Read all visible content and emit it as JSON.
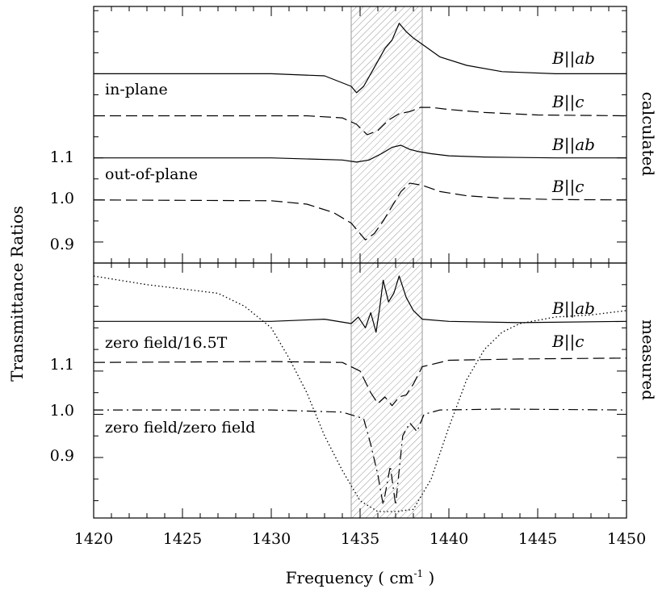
{
  "chart_data": [
    {
      "panel": "top",
      "type": "line",
      "side_label": "calculated",
      "xlim": [
        1420,
        1450
      ],
      "ylim": [
        0.85,
        1.46
      ],
      "yticks": [
        0.9,
        1.0,
        1.1
      ],
      "yticklabels": [
        "0.9",
        "1.0",
        "1.1"
      ],
      "annotations": [
        "in-plane",
        "out-of-plane"
      ],
      "series": [
        {
          "name": "B||ab",
          "group": "in-plane",
          "style": "solid",
          "x": [
            1420,
            1430,
            1433,
            1434.5,
            1434.8,
            1435.2,
            1435.6,
            1436,
            1436.4,
            1436.8,
            1437.2,
            1437.6,
            1438,
            1438.5,
            1439.5,
            1441,
            1443,
            1446,
            1450
          ],
          "y": [
            1.3,
            1.3,
            1.295,
            1.27,
            1.255,
            1.27,
            1.3,
            1.33,
            1.36,
            1.38,
            1.42,
            1.4,
            1.385,
            1.37,
            1.34,
            1.32,
            1.305,
            1.3,
            1.3
          ]
        },
        {
          "name": "B||c",
          "group": "in-plane",
          "style": "dashed",
          "x": [
            1420,
            1432,
            1434,
            1434.8,
            1435.4,
            1436,
            1436.6,
            1437.2,
            1437.8,
            1438.4,
            1439,
            1440,
            1442,
            1445,
            1450
          ],
          "y": [
            1.2,
            1.2,
            1.195,
            1.18,
            1.155,
            1.165,
            1.19,
            1.205,
            1.21,
            1.22,
            1.22,
            1.215,
            1.208,
            1.202,
            1.2
          ]
        },
        {
          "name": "B||ab",
          "group": "out-of-plane",
          "style": "solid",
          "x": [
            1420,
            1430,
            1434,
            1434.8,
            1435.5,
            1436.2,
            1436.8,
            1437.3,
            1437.8,
            1438.3,
            1439,
            1440,
            1442,
            1446,
            1450
          ],
          "y": [
            1.1,
            1.1,
            1.095,
            1.09,
            1.095,
            1.11,
            1.125,
            1.13,
            1.12,
            1.115,
            1.11,
            1.105,
            1.102,
            1.1,
            1.1
          ]
        },
        {
          "name": "B||c",
          "group": "out-of-plane",
          "style": "dashed",
          "x": [
            1420,
            1430,
            1432,
            1433.5,
            1434.5,
            1435.0,
            1435.3,
            1435.8,
            1436.3,
            1436.8,
            1437.3,
            1437.8,
            1438.5,
            1439.5,
            1441,
            1443,
            1446,
            1450
          ],
          "y": [
            1.0,
            0.998,
            0.99,
            0.97,
            0.945,
            0.92,
            0.905,
            0.92,
            0.95,
            0.985,
            1.02,
            1.04,
            1.035,
            1.02,
            1.01,
            1.004,
            1.001,
            1.0
          ]
        }
      ]
    },
    {
      "panel": "bottom",
      "type": "line",
      "side_label": "measured",
      "xlim": [
        1420,
        1450
      ],
      "ylim": [
        0.76,
        1.35
      ],
      "yticks": [
        0.9,
        1.0,
        1.1
      ],
      "yticklabels": [
        "0.9",
        "1.0",
        "1.1"
      ],
      "annotations": [
        "zero field/16.5T",
        "zero field/zero field"
      ],
      "series": [
        {
          "name": "B||ab",
          "group": "zero field/16.5T",
          "style": "solid",
          "x": [
            1420,
            1430,
            1433,
            1434.5,
            1434.9,
            1435.3,
            1435.6,
            1435.9,
            1436.1,
            1436.3,
            1436.6,
            1436.9,
            1437.2,
            1437.6,
            1438,
            1438.5,
            1440,
            1444,
            1450
          ],
          "y": [
            1.215,
            1.215,
            1.22,
            1.21,
            1.225,
            1.2,
            1.235,
            1.19,
            1.245,
            1.31,
            1.26,
            1.28,
            1.32,
            1.27,
            1.24,
            1.22,
            1.215,
            1.212,
            1.215
          ]
        },
        {
          "name": "B||c",
          "group": "zero field/16.5T",
          "style": "dashed",
          "x": [
            1420,
            1430,
            1434,
            1435,
            1435.6,
            1436,
            1436.4,
            1436.8,
            1437.2,
            1437.6,
            1438,
            1438.5,
            1440,
            1444,
            1450
          ],
          "y": [
            1.12,
            1.122,
            1.12,
            1.1,
            1.05,
            1.025,
            1.04,
            1.02,
            1.04,
            1.045,
            1.07,
            1.11,
            1.125,
            1.128,
            1.13
          ]
        },
        {
          "name": "",
          "group": "zero field/zero field",
          "style": "dashdot",
          "x": [
            1420,
            1430,
            1434,
            1435.2,
            1435.6,
            1436,
            1436.3,
            1436.7,
            1437,
            1437.4,
            1437.8,
            1438.2,
            1438.6,
            1439.5,
            1443,
            1450
          ],
          "y": [
            1.01,
            1.01,
            1.005,
            0.99,
            0.93,
            0.86,
            0.79,
            0.88,
            0.79,
            0.95,
            0.98,
            0.96,
            1.0,
            1.01,
            1.012,
            1.01
          ]
        },
        {
          "name": "",
          "group": "",
          "style": "dotted",
          "x": [
            1420,
            1423,
            1425,
            1427,
            1428.5,
            1430,
            1431,
            1432,
            1433,
            1434,
            1435,
            1436,
            1437,
            1438,
            1439,
            1440,
            1441,
            1442,
            1443,
            1444,
            1446,
            1448,
            1450
          ],
          "y": [
            1.32,
            1.3,
            1.29,
            1.28,
            1.25,
            1.2,
            1.13,
            1.05,
            0.95,
            0.87,
            0.8,
            0.775,
            0.775,
            0.78,
            0.85,
            0.97,
            1.08,
            1.15,
            1.19,
            1.21,
            1.225,
            1.23,
            1.24
          ]
        }
      ]
    }
  ],
  "shaded_band": {
    "x_range": [
      1434.5,
      1438.5
    ]
  },
  "x_axis": {
    "ticks": [
      1420,
      1425,
      1430,
      1435,
      1440,
      1445,
      1450
    ],
    "ticklabels": [
      "1420",
      "1425",
      "1430",
      "1435",
      "1440",
      "1445",
      "1450"
    ],
    "label": "Frequency ( cm",
    "label_sup": "-1",
    "label_end": " )"
  },
  "y_axis_label": "Transmittance Ratios",
  "series_label_parts": {
    "b": "B",
    "sep": "||",
    "ab": "ab",
    "c": "c"
  },
  "colors": {
    "line": "#000000",
    "hatch": "#9a9a9a",
    "background": "#ffffff"
  }
}
